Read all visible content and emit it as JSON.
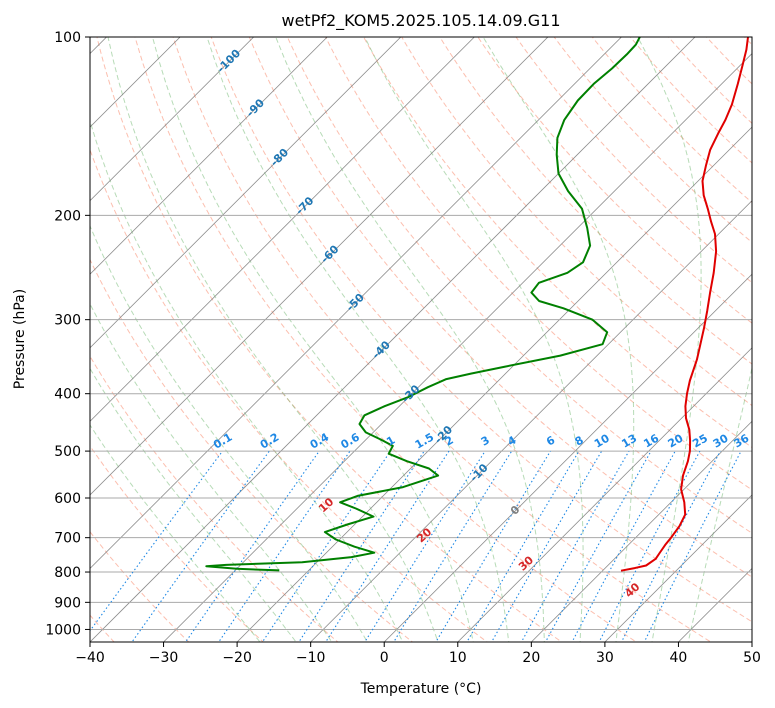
{
  "chart_data": {
    "type": "line",
    "title": "wetPf2_KOM5.2025.105.14.09.G11",
    "xlabel": "Temperature (°C)",
    "ylabel": "Pressure (hPa)",
    "xlim": [
      -40,
      50
    ],
    "ylim": [
      1050,
      100
    ],
    "y_scale": "log",
    "x_ticks": [
      -40,
      -30,
      -20,
      -10,
      0,
      10,
      20,
      30,
      40,
      50
    ],
    "y_ticks": [
      100,
      200,
      300,
      400,
      500,
      600,
      700,
      800,
      900,
      1000
    ],
    "grid": true,
    "skew": 45,
    "colors": {
      "temperature": "#e00000",
      "dewpoint": "#008000",
      "isotherm": "#808080",
      "dry_adiabat": "#fa8060",
      "moist_adiabat": "#60b060",
      "mixing_ratio": "#1e88e5",
      "isotherm_label": "#1f77b4",
      "dry_adiabat_label": "#d62728"
    },
    "series": [
      {
        "name": "",
        "variable": "temperature",
        "points": [
          {
            "p": 796,
            "t": 22.5
          },
          {
            "p": 788,
            "t": 24.0
          },
          {
            "p": 780,
            "t": 25.2
          },
          {
            "p": 760,
            "t": 25.6
          },
          {
            "p": 740,
            "t": 25.3
          },
          {
            "p": 720,
            "t": 25.0
          },
          {
            "p": 700,
            "t": 24.8
          },
          {
            "p": 670,
            "t": 24.4
          },
          {
            "p": 640,
            "t": 23.6
          },
          {
            "p": 610,
            "t": 21.8
          },
          {
            "p": 580,
            "t": 19.6
          },
          {
            "p": 550,
            "t": 18.0
          },
          {
            "p": 520,
            "t": 16.7
          },
          {
            "p": 500,
            "t": 15.6
          },
          {
            "p": 480,
            "t": 14.2
          },
          {
            "p": 460,
            "t": 12.6
          },
          {
            "p": 440,
            "t": 10.6
          },
          {
            "p": 420,
            "t": 8.9
          },
          {
            "p": 400,
            "t": 7.4
          },
          {
            "p": 380,
            "t": 6.0
          },
          {
            "p": 350,
            "t": 4.1
          },
          {
            "p": 330,
            "t": 2.5
          },
          {
            "p": 310,
            "t": 0.8
          },
          {
            "p": 290,
            "t": -1.1
          },
          {
            "p": 270,
            "t": -3.2
          },
          {
            "p": 250,
            "t": -5.4
          },
          {
            "p": 230,
            "t": -8.0
          },
          {
            "p": 215,
            "t": -10.5
          },
          {
            "p": 205,
            "t": -12.7
          },
          {
            "p": 195,
            "t": -14.9
          },
          {
            "p": 185,
            "t": -17.3
          },
          {
            "p": 175,
            "t": -19.4
          },
          {
            "p": 165,
            "t": -21.0
          },
          {
            "p": 155,
            "t": -22.6
          },
          {
            "p": 145,
            "t": -23.8
          },
          {
            "p": 138,
            "t": -24.6
          },
          {
            "p": 130,
            "t": -25.8
          },
          {
            "p": 120,
            "t": -27.8
          },
          {
            "p": 112,
            "t": -29.6
          },
          {
            "p": 105,
            "t": -31.3
          },
          {
            "p": 100,
            "t": -32.8
          }
        ]
      },
      {
        "name": "",
        "variable": "dewpoint",
        "points": [
          {
            "p": 795,
            "t": -24.0
          },
          {
            "p": 790,
            "t": -30.0
          },
          {
            "p": 782,
            "t": -34.5
          },
          {
            "p": 778,
            "t": -32.0
          },
          {
            "p": 770,
            "t": -22.0
          },
          {
            "p": 755,
            "t": -16.0
          },
          {
            "p": 742,
            "t": -13.5
          },
          {
            "p": 725,
            "t": -17.0
          },
          {
            "p": 705,
            "t": -20.5
          },
          {
            "p": 685,
            "t": -23.0
          },
          {
            "p": 665,
            "t": -21.0
          },
          {
            "p": 645,
            "t": -18.5
          },
          {
            "p": 625,
            "t": -22.0
          },
          {
            "p": 610,
            "t": -25.0
          },
          {
            "p": 595,
            "t": -23.5
          },
          {
            "p": 575,
            "t": -18.5
          },
          {
            "p": 550,
            "t": -15.3
          },
          {
            "p": 535,
            "t": -17.5
          },
          {
            "p": 520,
            "t": -21.5
          },
          {
            "p": 505,
            "t": -25.0
          },
          {
            "p": 490,
            "t": -25.5
          },
          {
            "p": 478,
            "t": -28.0
          },
          {
            "p": 465,
            "t": -31.0
          },
          {
            "p": 450,
            "t": -33.0
          },
          {
            "p": 435,
            "t": -33.5
          },
          {
            "p": 420,
            "t": -32.0
          },
          {
            "p": 405,
            "t": -30.0
          },
          {
            "p": 390,
            "t": -28.7
          },
          {
            "p": 378,
            "t": -27.3
          },
          {
            "p": 370,
            "t": -24.7
          },
          {
            "p": 360,
            "t": -21.0
          },
          {
            "p": 345,
            "t": -15.0
          },
          {
            "p": 330,
            "t": -10.8
          },
          {
            "p": 315,
            "t": -11.8
          },
          {
            "p": 300,
            "t": -15.5
          },
          {
            "p": 287,
            "t": -21.0
          },
          {
            "p": 279,
            "t": -25.3
          },
          {
            "p": 270,
            "t": -27.5
          },
          {
            "p": 260,
            "t": -27.8
          },
          {
            "p": 250,
            "t": -25.3
          },
          {
            "p": 240,
            "t": -24.6
          },
          {
            "p": 225,
            "t": -25.9
          },
          {
            "p": 210,
            "t": -28.7
          },
          {
            "p": 195,
            "t": -32.0
          },
          {
            "p": 182,
            "t": -36.3
          },
          {
            "p": 170,
            "t": -40.0
          },
          {
            "p": 158,
            "t": -42.8
          },
          {
            "p": 148,
            "t": -45.0
          },
          {
            "p": 138,
            "t": -46.5
          },
          {
            "p": 128,
            "t": -47.3
          },
          {
            "p": 120,
            "t": -47.4
          },
          {
            "p": 113,
            "t": -47.0
          },
          {
            "p": 107,
            "t": -46.9
          },
          {
            "p": 103,
            "t": -47.0
          },
          {
            "p": 100,
            "t": -47.5
          }
        ]
      }
    ],
    "isotherm_labels": [
      {
        "text": "-100",
        "t": -100,
        "p": 110
      },
      {
        "text": "-90",
        "t": -90,
        "p": 132
      },
      {
        "text": "-80",
        "t": -80,
        "p": 160
      },
      {
        "text": "-70",
        "t": -70,
        "p": 193
      },
      {
        "text": "-60",
        "t": -60,
        "p": 233
      },
      {
        "text": "-50",
        "t": -50,
        "p": 281
      },
      {
        "text": "-40",
        "t": -40,
        "p": 338
      },
      {
        "text": "-30",
        "t": -30,
        "p": 401
      },
      {
        "text": "-20",
        "t": -20,
        "p": 470
      },
      {
        "text": "-10",
        "t": -10,
        "p": 545
      },
      {
        "text": "0",
        "t": 0,
        "p": 630
      }
    ],
    "dry_adiabat_labels": [
      {
        "text": "10",
        "theta_c": 10,
        "p": 618
      },
      {
        "text": "20",
        "theta_c": 20,
        "p": 695
      },
      {
        "text": "30",
        "theta_c": 30,
        "p": 775
      },
      {
        "text": "40",
        "theta_c": 40,
        "p": 860
      }
    ],
    "mixing_ratio_lines": [
      {
        "text": "0.1",
        "w": 0.1
      },
      {
        "text": "0.2",
        "w": 0.2
      },
      {
        "text": "0.4",
        "w": 0.4
      },
      {
        "text": "0.6",
        "w": 0.6
      },
      {
        "text": "1",
        "w": 1
      },
      {
        "text": "1.5",
        "w": 1.5
      },
      {
        "text": "2",
        "w": 2
      },
      {
        "text": "3",
        "w": 3
      },
      {
        "text": "4",
        "w": 4
      },
      {
        "text": "6",
        "w": 6
      },
      {
        "text": "8",
        "w": 8
      },
      {
        "text": "10",
        "w": 10
      },
      {
        "text": "13",
        "w": 13
      },
      {
        "text": "16",
        "w": 16
      },
      {
        "text": "20",
        "w": 20
      },
      {
        "text": "25",
        "w": 25
      },
      {
        "text": "30",
        "w": 30
      },
      {
        "text": "36",
        "w": 36
      }
    ]
  }
}
